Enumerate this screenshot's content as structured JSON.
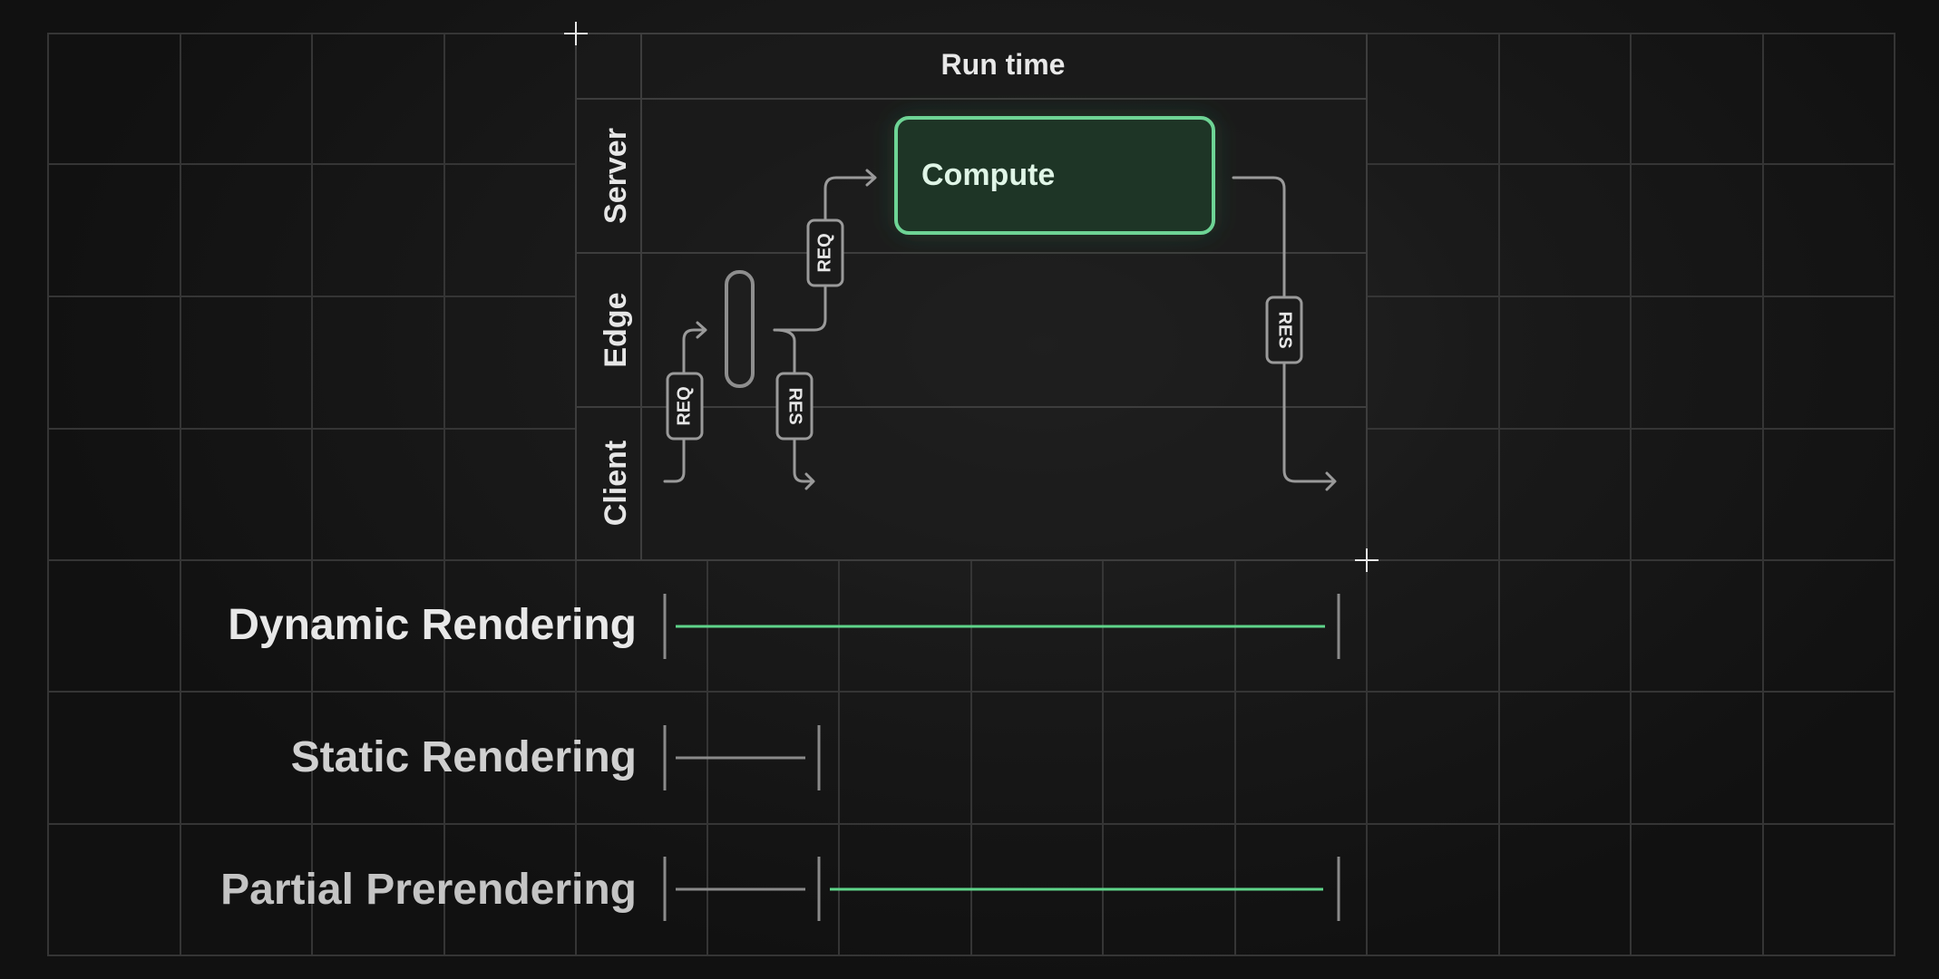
{
  "diagram": {
    "header": "Run time",
    "lanes": [
      {
        "id": "server",
        "label": "Server"
      },
      {
        "id": "edge",
        "label": "Edge"
      },
      {
        "id": "client",
        "label": "Client"
      }
    ],
    "compute_label": "Compute",
    "tags": {
      "req_client_edge": "REQ",
      "res_edge_client": "RES",
      "req_edge_server": "REQ",
      "res_server_client": "RES"
    },
    "colors": {
      "accent": "#5fd48a",
      "line": "#9a9a9a",
      "grid": "#3a3a3a",
      "text": "#e6e6e6"
    }
  },
  "timeline": {
    "rows": [
      {
        "label": "Dynamic Rendering",
        "segments": [
          {
            "kind": "dynamic"
          }
        ]
      },
      {
        "label": "Static Rendering",
        "segments": [
          {
            "kind": "static"
          }
        ]
      },
      {
        "label": "Partial Prerendering",
        "segments": [
          {
            "kind": "static"
          },
          {
            "kind": "dynamic"
          }
        ]
      }
    ]
  }
}
